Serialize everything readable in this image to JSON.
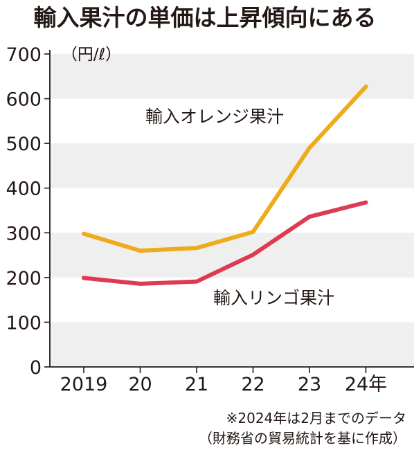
{
  "title": "輸入果汁の単価は上昇傾向にある",
  "unit_label": "（円/ℓ）",
  "notes": [
    "※2024年は2月までのデータ",
    "（財務省の貿易統計を基に作成）"
  ],
  "colors": {
    "orange": "#eeab1c",
    "apple": "#de3a52",
    "band": "#efefef",
    "axis": "#231815"
  },
  "chart_data": {
    "type": "line",
    "title": "輸入果汁の単価は上昇傾向にある",
    "ylabel": "（円/ℓ）",
    "xlabel": "",
    "x": [
      "2019",
      "20",
      "21",
      "22",
      "23",
      "24年"
    ],
    "ylim": [
      0,
      700
    ],
    "yticks": [
      "0",
      "100",
      "200",
      "300",
      "400",
      "500",
      "600",
      "700"
    ],
    "grid": "alternating horizontal bands",
    "series": [
      {
        "name": "輸入オレンジ果汁",
        "values": [
          298,
          260,
          266,
          302,
          490,
          627
        ]
      },
      {
        "name": "輸入リンゴ果汁",
        "values": [
          199,
          186,
          191,
          251,
          336,
          368
        ]
      }
    ]
  }
}
